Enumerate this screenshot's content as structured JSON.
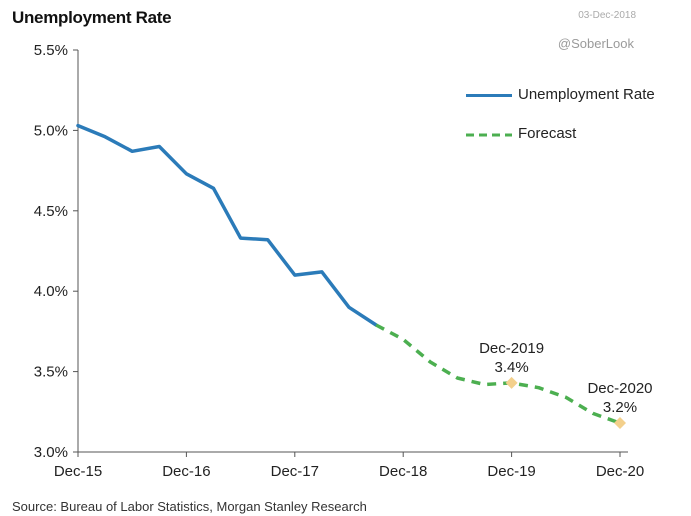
{
  "header": {
    "title": "Unemployment Rate",
    "date_stamp": "03-Dec-2018",
    "watermark": "@SoberLook"
  },
  "footer": {
    "source": "Source: Bureau of Labor Statistics, Morgan Stanley Research"
  },
  "colors": {
    "actual": "#2b7bb9",
    "forecast": "#4caf50",
    "marker": "#f3d08c",
    "axis": "#555555"
  },
  "chart_data": {
    "type": "line",
    "title": "Unemployment Rate",
    "xlabel": "",
    "ylabel": "",
    "ylim": [
      3.0,
      5.5
    ],
    "y_ticks": [
      3.0,
      3.5,
      4.0,
      4.5,
      5.0,
      5.5
    ],
    "y_tick_labels": [
      "3.0%",
      "3.5%",
      "4.0%",
      "4.5%",
      "5.0%",
      "5.5%"
    ],
    "x_ticks": [
      "Dec-15",
      "Dec-16",
      "Dec-17",
      "Dec-18",
      "Dec-19",
      "Dec-20"
    ],
    "x_range": [
      0,
      20
    ],
    "grid": false,
    "legend_position": "top-right",
    "series": [
      {
        "name": "Unemployment Rate",
        "style": "solid",
        "x": [
          0,
          1,
          2,
          3,
          4,
          5,
          6,
          7,
          8,
          9,
          10,
          11
        ],
        "y": [
          5.03,
          4.96,
          4.87,
          4.9,
          4.73,
          4.64,
          4.33,
          4.32,
          4.1,
          4.12,
          3.9,
          3.79
        ]
      },
      {
        "name": "Forecast",
        "style": "dashed",
        "x": [
          11,
          12,
          13,
          14,
          15,
          16,
          17,
          18,
          19,
          20
        ],
        "y": [
          3.79,
          3.7,
          3.56,
          3.46,
          3.42,
          3.43,
          3.4,
          3.34,
          3.24,
          3.18
        ]
      }
    ],
    "annotations": [
      {
        "x": 16,
        "y": 3.43,
        "label_line1": "Dec-2019",
        "label_line2": "3.4%"
      },
      {
        "x": 20,
        "y": 3.18,
        "label_line1": "Dec-2020",
        "label_line2": "3.2%"
      }
    ]
  }
}
